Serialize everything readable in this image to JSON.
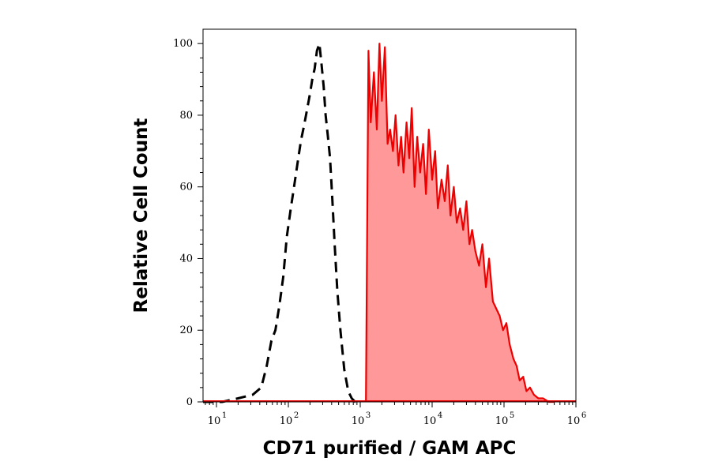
{
  "chart_data": {
    "type": "area",
    "xlabel": "CD71 purified / GAM APC",
    "ylabel": "Relative Cell Count",
    "x_scale": "log10",
    "xlim": [
      6.5,
      1000000
    ],
    "ylim": [
      0,
      104
    ],
    "x_ticks": [
      {
        "base": "10",
        "exp": "1",
        "value": 10
      },
      {
        "base": "10",
        "exp": "2",
        "value": 100
      },
      {
        "base": "10",
        "exp": "3",
        "value": 1000
      },
      {
        "base": "10",
        "exp": "4",
        "value": 10000
      },
      {
        "base": "10",
        "exp": "5",
        "value": 100000
      },
      {
        "base": "10",
        "exp": "6",
        "value": 1000000
      }
    ],
    "y_ticks": [
      "0",
      "20",
      "40",
      "60",
      "80",
      "100"
    ],
    "grid": false,
    "legend": "none",
    "series": [
      {
        "style": "dashed",
        "color": "#000000",
        "fill": "none",
        "x": [
          6.5,
          12,
          20,
          32,
          42,
          50,
          58,
          66,
          75,
          85,
          95,
          108,
          120,
          135,
          150,
          165,
          180,
          200,
          215,
          232,
          250,
          270,
          290,
          310,
          330,
          355,
          380,
          410,
          440,
          480,
          530,
          600,
          680,
          760,
          850,
          950
        ],
        "y": [
          0,
          0,
          1,
          2,
          4,
          10,
          17,
          20,
          27,
          35,
          46,
          54,
          60,
          67,
          73,
          77,
          81,
          86,
          90,
          93,
          98,
          100,
          94,
          88,
          80,
          74,
          68,
          56,
          44,
          31,
          20,
          9,
          3,
          1,
          0,
          0
        ]
      },
      {
        "style": "solid",
        "color": "#ee0000",
        "fill": "#ff9999",
        "x": [
          1200,
          1300,
          1400,
          1550,
          1700,
          1850,
          2000,
          2200,
          2400,
          2600,
          2850,
          3100,
          3400,
          3700,
          4000,
          4400,
          4800,
          5200,
          5700,
          6200,
          6800,
          7500,
          8200,
          9000,
          10000,
          11000,
          12000,
          13500,
          15000,
          16500,
          18000,
          20000,
          22000,
          24500,
          27000,
          30000,
          33000,
          36000,
          40000,
          45000,
          50000,
          56000,
          62000,
          70000,
          78000,
          87000,
          97000,
          108000,
          120000,
          135000,
          150000,
          165000,
          185000,
          205000,
          230000,
          260000,
          300000,
          350000,
          420000,
          500000
        ],
        "y": [
          0,
          98,
          78,
          92,
          76,
          100,
          84,
          99,
          72,
          76,
          70,
          80,
          66,
          74,
          64,
          78,
          68,
          82,
          60,
          74,
          64,
          72,
          58,
          76,
          62,
          70,
          54,
          62,
          56,
          66,
          52,
          60,
          50,
          54,
          48,
          56,
          44,
          48,
          42,
          38,
          44,
          32,
          40,
          28,
          26,
          24,
          20,
          22,
          16,
          12,
          10,
          6,
          7,
          3,
          4,
          2,
          1,
          1,
          0,
          0
        ]
      }
    ]
  }
}
